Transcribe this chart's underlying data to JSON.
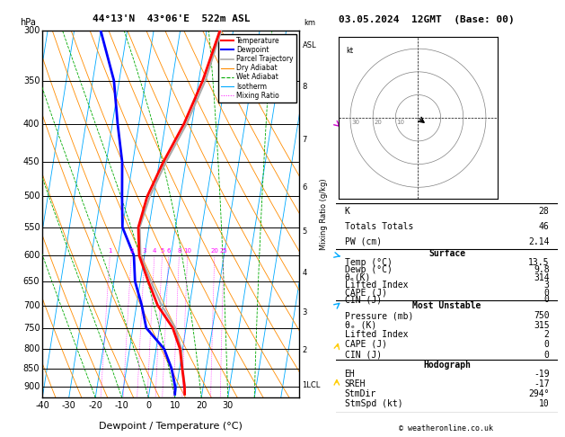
{
  "title_left": "44°13'N  43°06'E  522m ASL",
  "title_right": "03.05.2024  12GMT  (Base: 00)",
  "xlabel": "Dewpoint / Temperature (°C)",
  "ylabel_left": "hPa",
  "ylabel_right": "Mixing Ratio (g/kg)",
  "bg_color": "#ffffff",
  "pressure_levels": [
    300,
    350,
    400,
    450,
    500,
    550,
    600,
    650,
    700,
    750,
    800,
    850,
    900
  ],
  "p_min": 300,
  "p_max": 930,
  "t_min": -40,
  "t_max": 35,
  "skew_factor": 22.0,
  "km_ticks": [
    "8",
    "7",
    "6",
    "5",
    "4",
    "3",
    "2",
    "1LCL"
  ],
  "km_pressures": [
    357,
    420,
    487,
    558,
    633,
    715,
    803,
    895
  ],
  "temp_profile_p": [
    920,
    900,
    850,
    800,
    750,
    700,
    650,
    600,
    550,
    500,
    450,
    400,
    350,
    300
  ],
  "temp_profile_t": [
    13.5,
    13.0,
    11.0,
    9.0,
    5.0,
    -2.0,
    -7.0,
    -12.0,
    -14.0,
    -12.5,
    -8.5,
    -3.0,
    1.5,
    5.0
  ],
  "dewp_profile_p": [
    920,
    900,
    850,
    800,
    750,
    700,
    650,
    600,
    550,
    500,
    450,
    400,
    350,
    300
  ],
  "dewp_profile_t": [
    9.8,
    9.5,
    7.0,
    3.0,
    -5.0,
    -8.0,
    -12.0,
    -14.0,
    -20.0,
    -22.0,
    -24.0,
    -28.0,
    -32.0,
    -40.0
  ],
  "parcel_profile_p": [
    920,
    900,
    850,
    800,
    750,
    700,
    650,
    600,
    550,
    500,
    450,
    400,
    350,
    300
  ],
  "parcel_profile_t": [
    13.5,
    13.2,
    11.2,
    9.5,
    6.0,
    -0.5,
    -6.0,
    -11.5,
    -13.5,
    -11.5,
    -7.5,
    -2.0,
    2.5,
    5.5
  ],
  "color_temp": "#ff0000",
  "color_dewp": "#0000ff",
  "color_parcel": "#aaaaaa",
  "color_dry_adiabat": "#ff8c00",
  "color_wet_adiabat": "#00aa00",
  "color_isotherm": "#00aaff",
  "color_mixing_ratio": "#ff00ff",
  "mixing_ratio_values": [
    1,
    2,
    3,
    4,
    5,
    6,
    8,
    10,
    20,
    25
  ],
  "wind_barb_pressures": [
    895,
    800,
    700,
    600,
    400
  ],
  "wind_barb_speeds": [
    10,
    5,
    10,
    15,
    25
  ],
  "wind_barb_dirs": [
    180,
    200,
    240,
    280,
    300
  ],
  "wind_barb_colors": [
    "#ffcc00",
    "#ffcc00",
    "#00aaff",
    "#00aaff",
    "#cc00cc"
  ],
  "info_K": 28,
  "info_TT": 46,
  "info_PW": "2.14",
  "info_surf_temp": "13.5",
  "info_surf_dewp": "9.8",
  "info_surf_thetae": 314,
  "info_surf_li": 3,
  "info_surf_cape": 0,
  "info_surf_cin": 0,
  "info_mu_press": 750,
  "info_mu_thetae": 315,
  "info_mu_li": 2,
  "info_mu_cape": 0,
  "info_mu_cin": 0,
  "info_hodo_eh": -19,
  "info_hodo_sreh": -17,
  "info_hodo_stmdir": "294°",
  "info_hodo_stmspd": 10,
  "copyright": "© weatheronline.co.uk"
}
